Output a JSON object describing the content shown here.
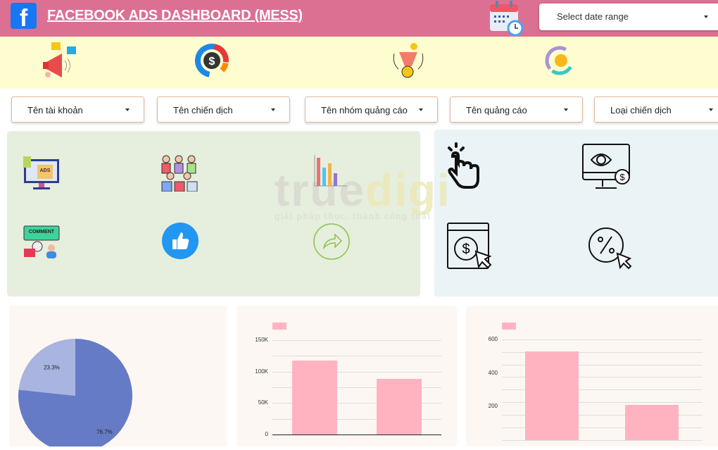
{
  "header": {
    "title": "FACEBOOK ADS DASHBOARD (MESS)",
    "logo": "f",
    "date_range": {
      "placeholder": "Select date range"
    }
  },
  "colors": {
    "header": "#db7093",
    "band": "#fdfdd0",
    "bar": "#ffb3c1",
    "pie_major": "#667bc6",
    "pie_minor": "#aab4e0",
    "left_panel": "#e6eedd",
    "right_panel": "#eaf3f5"
  },
  "band_icons": [
    "megaphone-icon",
    "dollar-donut-icon",
    "funnel-money-icon",
    "coin-cycle-icon"
  ],
  "filters": [
    {
      "label": "Tên tài khoản"
    },
    {
      "label": "Tên chiến dịch"
    },
    {
      "label": "Tên nhóm quảng cáo"
    },
    {
      "label": "Tên quảng cáo"
    },
    {
      "label": "Loại chiến dịch"
    }
  ],
  "metric_icons_left": [
    "ads-monitor-icon",
    "audience-icon",
    "bar-chart-icon",
    "comment-icon",
    "like-icon",
    "share-icon"
  ],
  "metric_icons_right": [
    "click-icon",
    "impression-monitor-icon",
    "cost-per-click-icon",
    "percent-click-icon"
  ],
  "icon_lettering": {
    "ads": "ADS",
    "comment": "COMMENT"
  },
  "watermark": {
    "brand": "truedigi",
    "slogan": "giải pháp thực, thành công thật"
  },
  "chart_data": [
    {
      "type": "pie",
      "values": [
        76.7,
        23.3
      ],
      "labels": [
        "76.7%",
        "23.3%"
      ]
    },
    {
      "type": "bar",
      "values": [
        117500,
        88000
      ],
      "yticks": [
        "150K",
        "100K",
        "50K",
        "0"
      ],
      "ylim": [
        0,
        150000
      ],
      "grid": true
    },
    {
      "type": "bar",
      "values": [
        530,
        210
      ],
      "yticks": [
        "600",
        "400",
        "200"
      ],
      "ylim": [
        0,
        600
      ],
      "grid": true
    }
  ]
}
